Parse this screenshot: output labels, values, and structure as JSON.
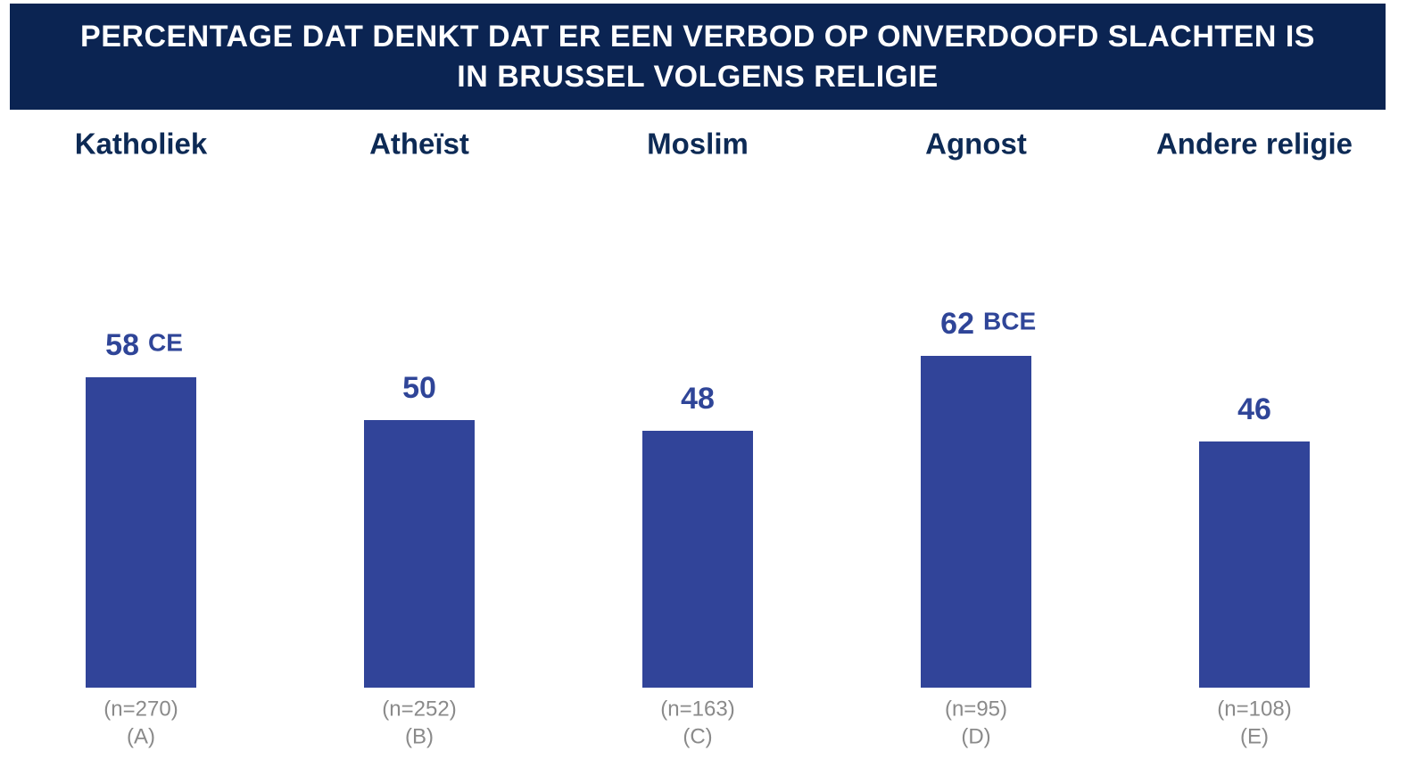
{
  "chart_data": {
    "type": "bar",
    "title": "PERCENTAGE DAT DENKT DAT ER EEN VERBOD OP ONVERDOOFD SLACHTEN IS IN BRUSSEL VOLGENS RELIGIE",
    "categories": [
      "Katholiek",
      "Atheïst",
      "Moslim",
      "Agnost",
      "Andere religie"
    ],
    "values": [
      58,
      50,
      48,
      62,
      46
    ],
    "annotations": [
      "CE",
      null,
      null,
      "BCE",
      null
    ],
    "sample_sizes": [
      "(n=270)",
      "(n=252)",
      "(n=163)",
      "(n=95)",
      "(n=108)"
    ],
    "group_letters": [
      "(A)",
      "(B)",
      "(C)",
      "(D)",
      "(E)"
    ],
    "color": "#314499",
    "ylim": [
      0,
      100
    ]
  }
}
